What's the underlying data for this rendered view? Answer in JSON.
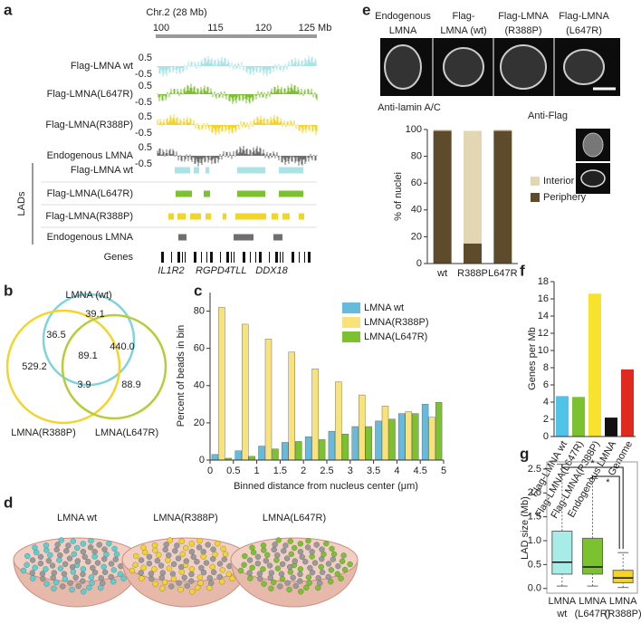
{
  "chart_data": [
    {
      "type": "tracks",
      "label": "a",
      "title": "Chr.2 (28 Mb)",
      "ruler_labels": [
        "100",
        "115",
        "120",
        "125 Mb"
      ],
      "signal_tracks": [
        {
          "name": "Flag-LMNA wt",
          "color": "#a9e3e6"
        },
        {
          "name": "Flag-LMNA(L647R)",
          "color": "#7cc230"
        },
        {
          "name": "Flag-LMNA(R388P)",
          "color": "#f2d42c"
        },
        {
          "name": "Endogenous LMNA",
          "color": "#6e6e6e"
        }
      ],
      "signal_ticks": [
        0.5,
        -0.5
      ],
      "lad_title": "LADs",
      "lad_tracks": [
        {
          "name": "Flag-LMNA wt",
          "color": "#a9e3e6"
        },
        {
          "name": "Flag-LMNA(L647R)",
          "color": "#7cc230"
        },
        {
          "name": "Flag-LMNA(R388P)",
          "color": "#f2d42c"
        },
        {
          "name": "Endogenous LMNA",
          "color": "#6e6e6e"
        }
      ],
      "genes_title": "Genes",
      "genes": [
        "IL1R2",
        "RGPD4",
        "TLL",
        "DDX18"
      ]
    },
    {
      "type": "venn",
      "label": "b",
      "sets": [
        "LMNA (wt)",
        "LMNA(R388P)",
        "LMNA(L647R)"
      ],
      "colors": [
        "#7fd3dc",
        "#f2d42c",
        "#b8cc3a"
      ],
      "values": [
        39.1,
        36.5,
        440.0,
        89.1,
        529.2,
        3.9,
        88.9
      ],
      "value_labels": [
        "39.1",
        "36.5",
        "440.0",
        "89.1",
        "529.2",
        "3.9",
        "88.9"
      ]
    },
    {
      "type": "grouped-bar",
      "label": "c",
      "x": [
        0.25,
        0.75,
        1.25,
        1.75,
        2.25,
        2.75,
        3.25,
        3.75,
        4.25,
        4.75
      ],
      "series": [
        {
          "name": "LMNA wt",
          "color": "#66bbdd",
          "values": [
            3,
            5,
            7.5,
            9.5,
            12.5,
            15.5,
            18,
            21,
            25,
            30
          ]
        },
        {
          "name": "LMNA(R388P)",
          "color": "#f8e27a",
          "values": [
            82,
            73,
            65,
            58,
            49,
            42,
            35,
            29,
            26,
            23
          ]
        },
        {
          "name": "LMNA(L647R)",
          "color": "#7cc230",
          "values": [
            1,
            2,
            6,
            10,
            11,
            14,
            18,
            22,
            25,
            31
          ]
        }
      ],
      "xlim": [
        0,
        5
      ],
      "xticks": [
        0,
        0.5,
        1,
        1.5,
        2,
        2.5,
        3,
        3.5,
        4,
        4.5,
        5
      ],
      "ylim": [
        0,
        90
      ],
      "yticks": [
        0,
        20,
        40,
        60,
        80
      ],
      "xlabel": "Binned distance from nucleus center (μm)",
      "ylabel": "Percent of beads in bin",
      "legend": "top-right"
    },
    {
      "type": "images",
      "label": "d",
      "titles": [
        "LMNA wt",
        "LMNA(R388P)",
        "LMNA(L647R)"
      ],
      "colors": [
        "#5ccfd0",
        "#f2d42c",
        "#7cc230"
      ]
    },
    {
      "type": "stacked-bar",
      "label": "e",
      "column_titles": [
        [
          "Endogenous",
          "LMNA"
        ],
        [
          "Flag-",
          "LMNA (wt)"
        ],
        [
          "Flag-LMNA",
          "(R388P)"
        ],
        [
          "Flag-LMNA",
          "(L647R)"
        ]
      ],
      "image_captions": [
        "Anti-lamin A/C",
        "Anti-Flag"
      ],
      "categories": [
        "wt",
        "R388P",
        "L647R"
      ],
      "series": [
        {
          "name": "Periphery",
          "color": "#5e4b2c",
          "values": [
            99,
            15,
            99
          ]
        },
        {
          "name": "Interior",
          "color": "#e3d7b3",
          "values": [
            1,
            84,
            1
          ]
        }
      ],
      "ylim": [
        0,
        100
      ],
      "yticks": [
        0,
        20,
        40,
        60,
        80,
        100
      ],
      "ylabel": "% of nuclei"
    },
    {
      "type": "bar",
      "label": "f",
      "categories": [
        "Flag-LMNA wt",
        "Flag-LMNA(L647R)",
        "Flag-LMNA(R388P)",
        "Endogenous LMNA",
        "Genome"
      ],
      "values": [
        4.7,
        4.6,
        16.6,
        2.2,
        7.8
      ],
      "colors": [
        "#4fc3e8",
        "#7cc230",
        "#f7e22c",
        "#111111",
        "#e02a20"
      ],
      "ylim": [
        0,
        18
      ],
      "yticks": [
        0,
        2,
        4,
        6,
        8,
        10,
        12,
        14,
        16,
        18
      ],
      "ylabel": "Genes per Mb"
    },
    {
      "type": "box",
      "label": "g",
      "categories": [
        [
          "LMNA",
          "wt"
        ],
        [
          "LMNA",
          "(L647R)"
        ],
        [
          "LMNA",
          "(R388P)"
        ]
      ],
      "colors": [
        "#a8ece8",
        "#7cc230",
        "#f2d42c"
      ],
      "boxes": [
        {
          "whislo": 0.05,
          "q1": 0.3,
          "med": 0.55,
          "q3": 1.2,
          "whishi": 2.6
        },
        {
          "whislo": 0.05,
          "q1": 0.3,
          "med": 0.45,
          "q3": 1.05,
          "whishi": 2.3
        },
        {
          "whislo": 0.02,
          "q1": 0.12,
          "med": 0.22,
          "q3": 0.38,
          "whishi": 0.75
        }
      ],
      "ylim": [
        -0.1,
        2.65
      ],
      "yticks": [
        {
          "value": 0,
          "label": "0.0"
        },
        0.5,
        {
          "value": 1,
          "label": "1.0"
        },
        1.5,
        {
          "value": 2,
          "label": "2.0"
        },
        2.5
      ],
      "ylabel": "LAD size (Mb)",
      "annotations": [
        "*",
        "*"
      ]
    }
  ]
}
